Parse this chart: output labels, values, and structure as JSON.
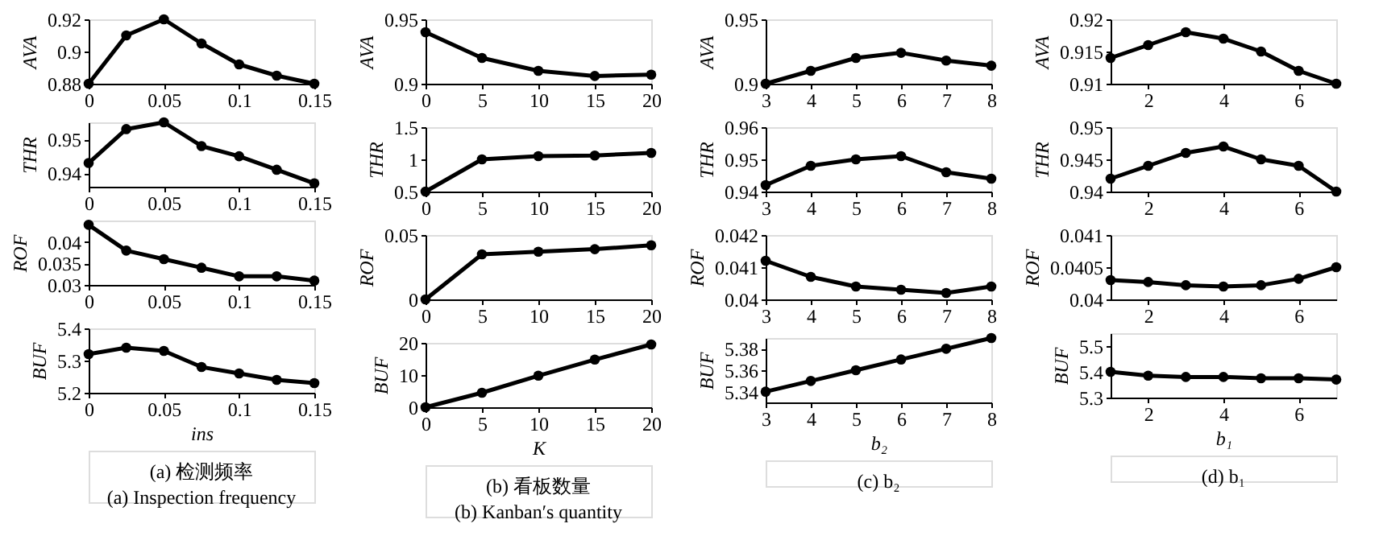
{
  "chart_data": [
    {
      "type": "line",
      "ylabel": "AVA",
      "x": [
        0,
        0.025,
        0.05,
        0.075,
        0.1,
        0.125,
        0.15
      ],
      "values": [
        0.88,
        0.91,
        0.92,
        0.905,
        0.892,
        0.885,
        0.88
      ],
      "xlim": [
        0,
        0.15
      ],
      "xticks": [
        0,
        0.05,
        0.1,
        0.15
      ],
      "ylim": [
        0.88,
        0.92
      ],
      "yticks": [
        0.88,
        0.9,
        0.92
      ],
      "color": "#000000",
      "marker": "circle"
    },
    {
      "type": "line",
      "ylabel": "AVA",
      "x": [
        0,
        5,
        10,
        15,
        20
      ],
      "values": [
        0.94,
        0.92,
        0.91,
        0.906,
        0.907
      ],
      "xlim": [
        0,
        20
      ],
      "xticks": [
        0,
        5,
        10,
        15,
        20
      ],
      "ylim": [
        0.9,
        0.95
      ],
      "yticks": [
        0.9,
        0.95
      ],
      "color": "#000000",
      "marker": "circle"
    },
    {
      "type": "line",
      "ylabel": "AVA",
      "x": [
        3,
        4,
        5,
        6,
        7,
        8
      ],
      "values": [
        0.9,
        0.91,
        0.92,
        0.924,
        0.918,
        0.914
      ],
      "xlim": [
        3,
        8
      ],
      "xticks": [
        3,
        4,
        5,
        6,
        7,
        8
      ],
      "ylim": [
        0.9,
        0.95
      ],
      "yticks": [
        0.9,
        0.95
      ],
      "color": "#000000",
      "marker": "circle"
    },
    {
      "type": "line",
      "ylabel": "AVA",
      "x": [
        1,
        2,
        3,
        4,
        5,
        6,
        7
      ],
      "values": [
        0.914,
        0.916,
        0.918,
        0.917,
        0.915,
        0.912,
        0.91
      ],
      "xlim": [
        1,
        7
      ],
      "xticks": [
        2,
        4,
        6
      ],
      "ylim": [
        0.91,
        0.92
      ],
      "yticks": [
        0.91,
        0.915,
        0.92
      ],
      "color": "#000000",
      "marker": "circle"
    },
    {
      "type": "line",
      "ylabel": "THR",
      "x": [
        0,
        0.025,
        0.05,
        0.075,
        0.1,
        0.125,
        0.15
      ],
      "values": [
        0.943,
        0.953,
        0.955,
        0.948,
        0.945,
        0.941,
        0.937
      ],
      "xlim": [
        0,
        0.15
      ],
      "xticks": [
        0,
        0.05,
        0.1,
        0.15
      ],
      "ylim": [
        0.936,
        0.955
      ],
      "yticks": [
        0.94,
        0.95
      ],
      "color": "#000000",
      "marker": "circle"
    },
    {
      "type": "line",
      "ylabel": "THR",
      "x": [
        0,
        5,
        10,
        15,
        20
      ],
      "values": [
        0.5,
        1.0,
        1.05,
        1.06,
        1.1
      ],
      "xlim": [
        0,
        20
      ],
      "xticks": [
        0,
        5,
        10,
        15,
        20
      ],
      "ylim": [
        0.5,
        1.5
      ],
      "yticks": [
        0.5,
        1,
        1.5
      ],
      "color": "#000000",
      "marker": "circle"
    },
    {
      "type": "line",
      "ylabel": "THR",
      "x": [
        3,
        4,
        5,
        6,
        7,
        8
      ],
      "values": [
        0.942,
        0.948,
        0.95,
        0.951,
        0.946,
        0.944
      ],
      "xlim": [
        3,
        8
      ],
      "xticks": [
        3,
        4,
        5,
        6,
        7,
        8
      ],
      "ylim": [
        0.94,
        0.96
      ],
      "yticks": [
        0.94,
        0.95,
        0.96
      ],
      "color": "#000000",
      "marker": "circle"
    },
    {
      "type": "line",
      "ylabel": "THR",
      "x": [
        1,
        2,
        3,
        4,
        5,
        6,
        7
      ],
      "values": [
        0.942,
        0.944,
        0.946,
        0.947,
        0.945,
        0.944,
        0.94
      ],
      "xlim": [
        1,
        7
      ],
      "xticks": [
        2,
        4,
        6
      ],
      "ylim": [
        0.94,
        0.95
      ],
      "yticks": [
        0.94,
        0.945,
        0.95
      ],
      "color": "#000000",
      "marker": "circle"
    },
    {
      "type": "line",
      "ylabel": "ROF",
      "x": [
        0,
        0.025,
        0.05,
        0.075,
        0.1,
        0.125,
        0.15
      ],
      "values": [
        0.044,
        0.038,
        0.036,
        0.034,
        0.032,
        0.032,
        0.031
      ],
      "xlim": [
        0,
        0.15
      ],
      "xticks": [
        0,
        0.05,
        0.1,
        0.15
      ],
      "ylim": [
        0.03,
        0.045
      ],
      "yticks": [
        0.03,
        0.035,
        0.04
      ],
      "color": "#000000",
      "marker": "circle"
    },
    {
      "type": "line",
      "ylabel": "ROF",
      "x": [
        0,
        5,
        10,
        15,
        20
      ],
      "values": [
        0,
        0.035,
        0.037,
        0.039,
        0.042
      ],
      "xlim": [
        0,
        20
      ],
      "xticks": [
        0,
        5,
        10,
        15,
        20
      ],
      "ylim": [
        0,
        0.05
      ],
      "yticks": [
        0,
        0.05
      ],
      "color": "#000000",
      "marker": "circle"
    },
    {
      "type": "line",
      "ylabel": "ROF",
      "x": [
        3,
        4,
        5,
        6,
        7,
        8
      ],
      "values": [
        0.0412,
        0.0407,
        0.0404,
        0.0403,
        0.0402,
        0.0404
      ],
      "xlim": [
        3,
        8
      ],
      "xticks": [
        3,
        4,
        5,
        6,
        7,
        8
      ],
      "ylim": [
        0.04,
        0.042
      ],
      "yticks": [
        0.04,
        0.041,
        0.042
      ],
      "color": "#000000",
      "marker": "circle"
    },
    {
      "type": "line",
      "ylabel": "ROF",
      "x": [
        1,
        2,
        3,
        4,
        5,
        6,
        7
      ],
      "values": [
        0.0403,
        0.04027,
        0.04022,
        0.0402,
        0.04022,
        0.04032,
        0.0405
      ],
      "xlim": [
        1,
        7
      ],
      "xticks": [
        2,
        4,
        6
      ],
      "ylim": [
        0.04,
        0.041
      ],
      "yticks": [
        0.04,
        0.0405,
        0.041
      ],
      "color": "#000000",
      "marker": "circle"
    },
    {
      "type": "line",
      "ylabel": "BUF",
      "xlabel": "ins",
      "x": [
        0,
        0.025,
        0.05,
        0.075,
        0.1,
        0.125,
        0.15
      ],
      "values": [
        5.32,
        5.34,
        5.33,
        5.28,
        5.26,
        5.24,
        5.23
      ],
      "xlim": [
        0,
        0.15
      ],
      "xticks": [
        0,
        0.05,
        0.1,
        0.15
      ],
      "ylim": [
        5.2,
        5.4
      ],
      "yticks": [
        5.2,
        5.3,
        5.4
      ],
      "color": "#000000",
      "marker": "circle",
      "annotations": [
        "(a) 检测频率",
        "(a) Inspection frequency"
      ]
    },
    {
      "type": "line",
      "ylabel": "BUF",
      "xlabel": "K",
      "x": [
        0,
        5,
        10,
        15,
        20
      ],
      "values": [
        0,
        4.5,
        9.8,
        14.8,
        19.5
      ],
      "xlim": [
        0,
        20
      ],
      "xticks": [
        0,
        5,
        10,
        15,
        20
      ],
      "ylim": [
        0,
        20
      ],
      "yticks": [
        0,
        10,
        20
      ],
      "color": "#000000",
      "marker": "circle",
      "annotations": [
        "(b) 看板数量",
        "(b) Kanban′s quantity"
      ]
    },
    {
      "type": "line",
      "ylabel": "BUF",
      "xlabel": "b₂",
      "x": [
        3,
        4,
        5,
        6,
        7,
        8
      ],
      "values": [
        5.34,
        5.35,
        5.36,
        5.37,
        5.38,
        5.39
      ],
      "xlim": [
        3,
        8
      ],
      "xticks": [
        3,
        4,
        5,
        6,
        7,
        8
      ],
      "ylim": [
        5.33,
        5.39
      ],
      "yticks": [
        5.34,
        5.36,
        5.38
      ],
      "color": "#000000",
      "marker": "circle",
      "annotations": [
        "(c) b₂"
      ]
    },
    {
      "type": "line",
      "ylabel": "BUF",
      "xlabel": "b₁",
      "x": [
        1,
        2,
        3,
        4,
        5,
        6,
        7
      ],
      "values": [
        5.4,
        5.385,
        5.38,
        5.38,
        5.375,
        5.375,
        5.37
      ],
      "xlim": [
        1,
        7
      ],
      "xticks": [
        2,
        4,
        6
      ],
      "ylim": [
        5.3,
        5.55
      ],
      "yticks": [
        5.3,
        5.4,
        5.5
      ],
      "color": "#000000",
      "marker": "circle",
      "annotations": [
        "(d) b₁"
      ]
    }
  ]
}
